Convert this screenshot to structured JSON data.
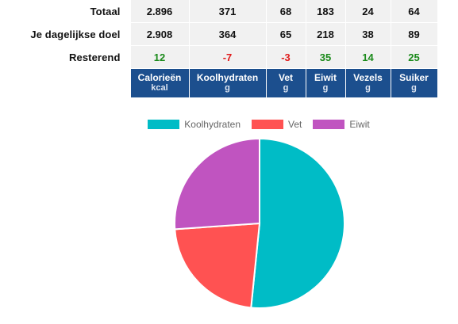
{
  "table": {
    "rows": [
      {
        "label": "Totaal",
        "values": [
          "2.896",
          "371",
          "68",
          "183",
          "24",
          "64"
        ]
      },
      {
        "label": "Je dagelijkse doel",
        "values": [
          "2.908",
          "364",
          "65",
          "218",
          "38",
          "89"
        ]
      },
      {
        "label": "Resterend",
        "values": [
          "12",
          "-7",
          "-3",
          "35",
          "14",
          "25"
        ],
        "status": [
          "pos",
          "neg",
          "neg",
          "pos",
          "pos",
          "pos"
        ]
      }
    ],
    "headers": [
      {
        "name": "Calorieën",
        "unit": "kcal"
      },
      {
        "name": "Koolhydraten",
        "unit": "g"
      },
      {
        "name": "Vet",
        "unit": "g"
      },
      {
        "name": "Eiwit",
        "unit": "g"
      },
      {
        "name": "Vezels",
        "unit": "g"
      },
      {
        "name": "Suiker",
        "unit": "g"
      }
    ]
  },
  "colors": {
    "header_bg": "#1c4f8e",
    "positive": "#1a8a1a",
    "negative": "#e01a1a"
  },
  "chart_data": {
    "type": "pie",
    "labels": [
      "Koolhydraten",
      "Vet",
      "Eiwit"
    ],
    "values": [
      51.6,
      22.3,
      26.1
    ],
    "colors": [
      "#00bcc6",
      "#ff5252",
      "#c054c0"
    ],
    "legend": "top"
  }
}
